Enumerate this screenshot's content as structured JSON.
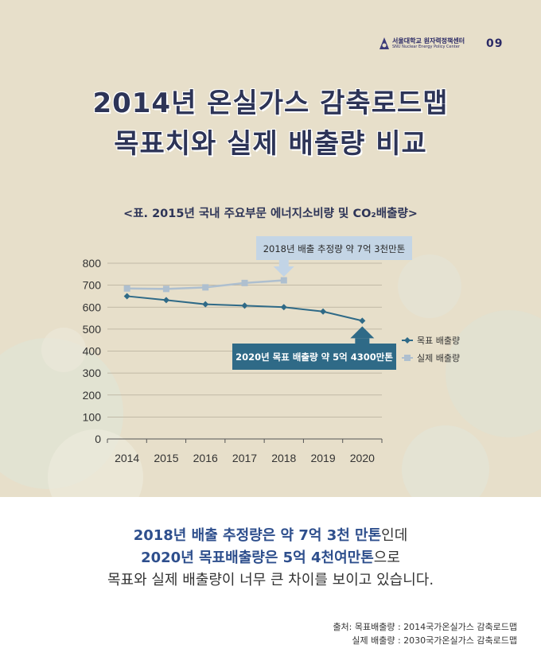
{
  "header": {
    "org_korean": "서울대학교 원자력정책센터",
    "org_english": "SNU Nuclear Energy Policy Center",
    "page_number": "09"
  },
  "title": {
    "line1": "2014년 온실가스 감축로드맵",
    "line2": "목표치와 실제 배출량 비교"
  },
  "subtitle": "<표. 2015년  국내  주요부문 에너지소비량 및 CO₂배출량>",
  "chart_data": {
    "type": "line",
    "categories": [
      "2014",
      "2015",
      "2016",
      "2017",
      "2018",
      "2019",
      "2020"
    ],
    "y_ticks": [
      "0",
      "100",
      "200",
      "300",
      "400",
      "500",
      "600",
      "700",
      "800"
    ],
    "ylim": [
      0,
      800
    ],
    "grid": true,
    "legend_position": "right",
    "series": [
      {
        "name": "목표 배출량",
        "color": "#2f6a87",
        "marker": "diamond",
        "values": [
          650,
          632,
          613,
          607,
          600,
          580,
          538
        ]
      },
      {
        "name": "실제 배출량",
        "color": "#aebfcf",
        "marker": "square",
        "values": [
          685,
          683,
          690,
          710,
          722,
          null,
          null
        ]
      }
    ],
    "annotations": [
      {
        "text": "2018년 배출 추정량 약 7억 3천만톤",
        "style": "light"
      },
      {
        "text": "2020년 목표 배출량 약 5억 4300만톤",
        "style": "dark"
      }
    ]
  },
  "summary": {
    "line1_highlight": "2018년 배출 추정량은 약 7억 3천 만톤",
    "line1_rest": "인데",
    "line2_highlight": "2020년 목표배출량은 5억 4천여만톤",
    "line2_rest": "으로",
    "line3": "목표와 실제 배출량이 너무 큰 차이를 보이고 있습니다."
  },
  "source": {
    "line1": "출처: 목표배출량 : 2014국가온실가스 감축로드맵",
    "line2": "실제 배출량 : 2030국가온실가스 감축로드맵"
  }
}
